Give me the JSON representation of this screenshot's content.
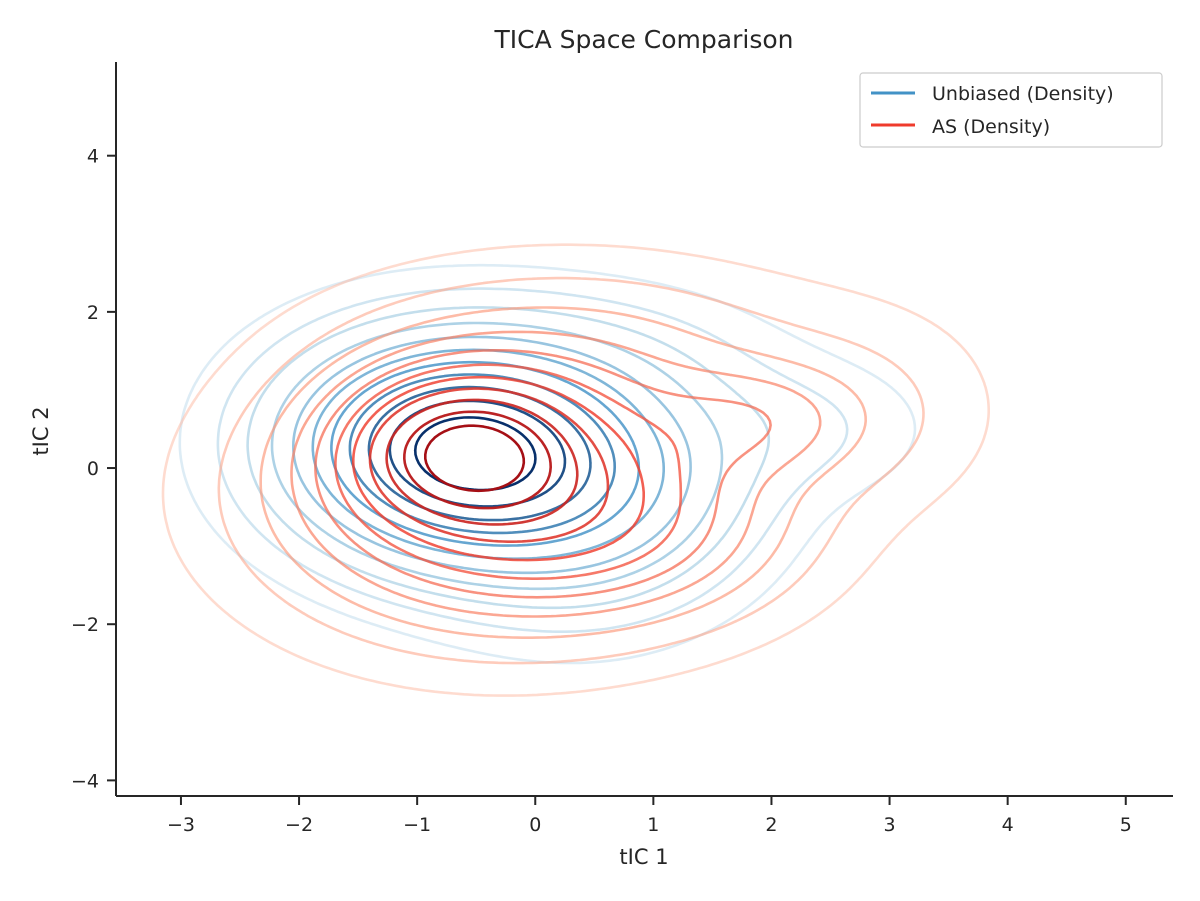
{
  "chart_data": {
    "type": "contour",
    "title": "TICA Space Comparison",
    "xlabel": "tIC 1",
    "ylabel": "tIC 2",
    "xlim": [
      -3.55,
      5.4
    ],
    "ylim": [
      -4.2,
      5.2
    ],
    "x_ticks": [
      -3,
      -2,
      -1,
      0,
      1,
      2,
      3,
      4,
      5
    ],
    "x_tick_labels": [
      "−3",
      "−2",
      "−1",
      "0",
      "1",
      "2",
      "3",
      "4",
      "5"
    ],
    "y_ticks": [
      -4,
      -2,
      0,
      2,
      4
    ],
    "y_tick_labels": [
      "−4",
      "−2",
      "0",
      "2",
      "4"
    ],
    "grid": false,
    "legend_position": "upper right",
    "series": [
      {
        "name": "Unbiased (Density)",
        "kind": "kde_density",
        "color": "#4292c6",
        "colormap": "Blues",
        "modes": [
          {
            "x": -0.63,
            "y": 0.2,
            "sx": 0.85,
            "sy": 0.82,
            "rho": -0.05,
            "weight": 1.0
          },
          {
            "x": 0.6,
            "y": -0.3,
            "sx": 0.8,
            "sy": 0.95,
            "rho": 0.1,
            "weight": 0.25
          },
          {
            "x": 2.3,
            "y": 0.5,
            "sx": 0.65,
            "sy": 0.55,
            "rho": 0.0,
            "weight": 0.05
          },
          {
            "x": 0.2,
            "y": 1.3,
            "sx": 1.0,
            "sy": 0.6,
            "rho": 0.0,
            "weight": 0.08
          }
        ]
      },
      {
        "name": "AS (Density)",
        "kind": "kde_density",
        "color": "#ef3b2c",
        "colormap": "Reds",
        "modes": [
          {
            "x": -0.63,
            "y": 0.25,
            "sx": 0.6,
            "sy": 0.6,
            "rho": 0.0,
            "weight": 0.55
          },
          {
            "x": -0.2,
            "y": -0.2,
            "sx": 1.15,
            "sy": 1.05,
            "rho": 0.05,
            "weight": 0.5
          },
          {
            "x": 1.85,
            "y": 0.6,
            "sx": 0.55,
            "sy": 0.45,
            "rho": 0.0,
            "weight": 0.13
          },
          {
            "x": 0.8,
            "y": -0.9,
            "sx": 0.9,
            "sy": 0.7,
            "rho": 0.0,
            "weight": 0.12
          },
          {
            "x": 0.5,
            "y": 1.6,
            "sx": 1.3,
            "sy": 0.7,
            "rho": 0.0,
            "weight": 0.06
          },
          {
            "x": 2.8,
            "y": 0.7,
            "sx": 0.7,
            "sy": 0.8,
            "rho": 0.0,
            "weight": 0.05
          }
        ]
      }
    ]
  }
}
